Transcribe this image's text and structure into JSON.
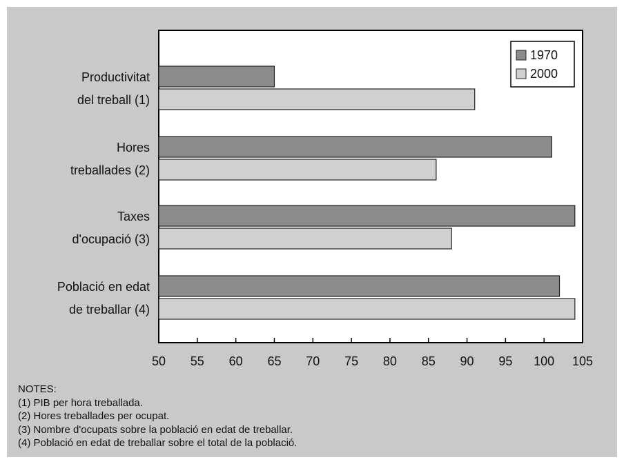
{
  "chart_data": {
    "type": "bar",
    "orientation": "horizontal",
    "categories": [
      [
        "Productivitat",
        "del treball (1)"
      ],
      [
        "Hores",
        "treballades (2)"
      ],
      [
        "Taxes",
        "d'ocupació (3)"
      ],
      [
        "Població en edat",
        "de treballar (4)"
      ]
    ],
    "series": [
      {
        "name": "1970",
        "values": [
          65,
          101,
          104,
          102
        ],
        "color": "#8c8c8c"
      },
      {
        "name": "2000",
        "values": [
          91,
          86,
          88,
          104
        ],
        "color": "#d0d0d0"
      }
    ],
    "xlim": [
      50,
      105
    ],
    "xticks": [
      "50",
      "55",
      "60",
      "65",
      "70",
      "75",
      "80",
      "85",
      "90",
      "95",
      "100",
      "105"
    ],
    "legend_position": "top-right",
    "grid": false
  },
  "notes": {
    "heading": "NOTES:",
    "items": [
      "(1) PIB per hora treballada.",
      "(2) Hores treballades per ocupat.",
      "(3) Nombre d'ocupats sobre la població en edat de treballar.",
      "(4) Població en edat de treballar sobre el total de la població."
    ]
  },
  "colors": {
    "panel_background": "#c9c9c9",
    "plot_background": "#ffffff",
    "axis": "#000000"
  }
}
